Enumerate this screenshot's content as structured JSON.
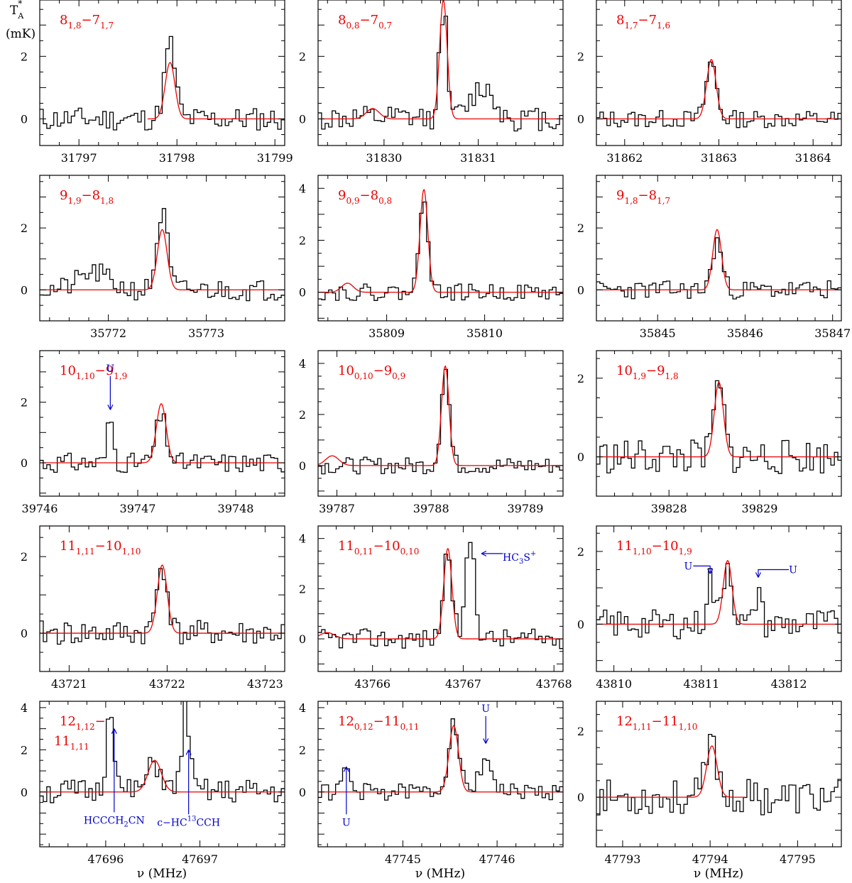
{
  "figure": {
    "ylabel_line1": "T",
    "ylabel_sub": "A",
    "ylabel_sup": "*",
    "ylabel_line2": "(mK)",
    "xlabel": "ν (MHz)"
  },
  "colors": {
    "observed": "#000000",
    "model": "#ee0000",
    "annotation": "#0000cc",
    "label": "#ee0000"
  },
  "chart_data": [
    {
      "type": "line",
      "id": "p00",
      "label": {
        "base": "8",
        "sub1": "1,8",
        "mid": "−7",
        "sub2": "1,7"
      },
      "xlim": [
        31796.6,
        31799.1
      ],
      "ylim": [
        -0.85,
        3.8
      ],
      "xticks": [
        31797,
        31798,
        31799
      ],
      "yticks": [
        0,
        2
      ],
      "line_center": 31797.93,
      "line_peak": 1.8,
      "line_width": 0.05,
      "fit_range": [
        31797.7,
        31799.1
      ],
      "obs_peak": 2.4,
      "seed": 11,
      "noise": 0.38,
      "extra_model": [],
      "extra_obs": [],
      "annotations": []
    },
    {
      "type": "line",
      "id": "p01",
      "label": {
        "base": "8",
        "sub1": "0,8",
        "mid": "−7",
        "sub2": "0,7"
      },
      "xlim": [
        31829.3,
        31831.9
      ],
      "ylim": [
        -0.85,
        3.8
      ],
      "xticks": [
        31830,
        31831
      ],
      "yticks": [
        0,
        2
      ],
      "line_center": 31830.63,
      "line_peak": 3.8,
      "line_width": 0.04,
      "fit_range": [
        31829.3,
        31831.9
      ],
      "obs_peak": 3.45,
      "seed": 12,
      "noise": 0.4,
      "extra_model": [
        {
          "c": 31829.88,
          "p": 0.33,
          "w": 0.07
        }
      ],
      "extra_obs": [
        {
          "c": 31831.05,
          "p": 1.0,
          "w": 0.12
        }
      ],
      "annotations": []
    },
    {
      "type": "line",
      "id": "p02",
      "label": {
        "base": "8",
        "sub1": "1,7",
        "mid": "−7",
        "sub2": "1,6"
      },
      "xlim": [
        31861.7,
        31864.3
      ],
      "ylim": [
        -0.85,
        3.8
      ],
      "xticks": [
        31862,
        31863,
        31864
      ],
      "yticks": [
        0,
        2
      ],
      "line_center": 31862.92,
      "line_peak": 1.9,
      "line_width": 0.05,
      "fit_range": [
        31861.7,
        31864.3
      ],
      "obs_peak": 1.8,
      "seed": 13,
      "noise": 0.28,
      "extra_model": [],
      "extra_obs": [],
      "annotations": []
    },
    {
      "type": "line",
      "id": "p10",
      "label": {
        "base": "9",
        "sub1": "1,9",
        "mid": "−8",
        "sub2": "1,8"
      },
      "xlim": [
        35771.3,
        35773.8
      ],
      "ylim": [
        -1.0,
        3.7
      ],
      "xticks": [
        35772,
        35773
      ],
      "yticks": [
        0,
        2
      ],
      "line_center": 35772.55,
      "line_peak": 1.95,
      "line_width": 0.05,
      "fit_range": [
        35771.3,
        35773.8
      ],
      "obs_peak": 2.5,
      "seed": 21,
      "noise": 0.35,
      "extra_model": [],
      "extra_obs": [
        {
          "c": 35771.85,
          "p": 0.55,
          "w": 0.15
        }
      ],
      "annotations": []
    },
    {
      "type": "line",
      "id": "p11",
      "label": {
        "base": "9",
        "sub1": "0,9",
        "mid": "−8",
        "sub2": "0,8"
      },
      "xlim": [
        35808.3,
        35810.8
      ],
      "ylim": [
        -1.1,
        4.5
      ],
      "xticks": [
        35809,
        35810
      ],
      "yticks": [
        0,
        2,
        4
      ],
      "line_center": 35809.38,
      "line_peak": 3.95,
      "line_width": 0.04,
      "fit_range": [
        35808.3,
        35810.8
      ],
      "obs_peak": 3.8,
      "seed": 22,
      "noise": 0.32,
      "extra_model": [
        {
          "c": 35808.6,
          "p": 0.35,
          "w": 0.06
        }
      ],
      "extra_obs": [],
      "annotations": []
    },
    {
      "type": "line",
      "id": "p12",
      "label": {
        "base": "9",
        "sub1": "1,8",
        "mid": "−8",
        "sub2": "1,7"
      },
      "xlim": [
        35844.3,
        35847.1
      ],
      "ylim": [
        -1.0,
        3.7
      ],
      "xticks": [
        35845,
        35846,
        35847
      ],
      "yticks": [
        0,
        2
      ],
      "line_center": 35845.68,
      "line_peak": 1.95,
      "line_width": 0.05,
      "fit_range": [
        35844.3,
        35847.1
      ],
      "obs_peak": 1.6,
      "seed": 23,
      "noise": 0.3,
      "extra_model": [],
      "extra_obs": [],
      "annotations": []
    },
    {
      "type": "line",
      "id": "p20",
      "label": {
        "base": "10",
        "sub1": "1,10",
        "mid": "−9",
        "sub2": "1,9"
      },
      "xlim": [
        39746.0,
        39748.5
      ],
      "ylim": [
        -1.1,
        3.7
      ],
      "xticks": [
        39746,
        39747,
        39748
      ],
      "yticks": [
        0,
        2
      ],
      "line_center": 39747.24,
      "line_peak": 1.95,
      "line_width": 0.05,
      "fit_range": [
        39746.0,
        39748.5
      ],
      "obs_peak": 1.5,
      "seed": 31,
      "noise": 0.33,
      "extra_model": [],
      "extra_obs": [
        {
          "c": 39746.72,
          "p": 1.5,
          "w": 0.03
        }
      ],
      "annotations": [
        {
          "text": "U",
          "x": 39746.72,
          "y_text": 3.0,
          "y_head": 1.75,
          "dir": "down"
        }
      ]
    },
    {
      "type": "line",
      "id": "p21",
      "label": {
        "base": "10",
        "sub1": "0,10",
        "mid": "−9",
        "sub2": "0,9"
      },
      "xlim": [
        39786.8,
        39789.4
      ],
      "ylim": [
        -1.2,
        4.5
      ],
      "xticks": [
        39787,
        39788,
        39789
      ],
      "yticks": [
        0,
        2,
        4
      ],
      "line_center": 39788.15,
      "line_peak": 3.9,
      "line_width": 0.04,
      "fit_range": [
        39786.8,
        39789.4
      ],
      "obs_peak": 3.8,
      "seed": 32,
      "noise": 0.33,
      "extra_model": [
        {
          "c": 39786.95,
          "p": 0.38,
          "w": 0.07
        }
      ],
      "extra_obs": [],
      "annotations": []
    },
    {
      "type": "line",
      "id": "p22",
      "label": {
        "base": "10",
        "sub1": "1,9",
        "mid": "−9",
        "sub2": "1,8"
      },
      "xlim": [
        39827.2,
        39829.9
      ],
      "ylim": [
        -1.0,
        2.7
      ],
      "xticks": [
        39828,
        39829
      ],
      "yticks": [
        0,
        2
      ],
      "line_center": 39828.55,
      "line_peak": 1.9,
      "line_width": 0.05,
      "fit_range": [
        39827.2,
        39829.9
      ],
      "obs_peak": 1.8,
      "seed": 33,
      "noise": 0.45,
      "extra_model": [],
      "extra_obs": [],
      "annotations": []
    },
    {
      "type": "line",
      "id": "p30",
      "label": {
        "base": "11",
        "sub1": "1,11",
        "mid": "−10",
        "sub2": "1,10"
      },
      "xlim": [
        43720.7,
        43723.2
      ],
      "ylim": [
        -1.0,
        2.8
      ],
      "xticks": [
        43721,
        43722,
        43723
      ],
      "yticks": [
        0,
        2
      ],
      "line_center": 43721.95,
      "line_peak": 1.78,
      "line_width": 0.05,
      "fit_range": [
        43720.7,
        43723.2
      ],
      "obs_peak": 1.8,
      "seed": 41,
      "noise": 0.33,
      "extra_model": [],
      "extra_obs": [],
      "annotations": []
    },
    {
      "type": "line",
      "id": "p31",
      "label": {
        "base": "11",
        "sub1": "0,11",
        "mid": "−10",
        "sub2": "0,10"
      },
      "xlim": [
        43765.4,
        43768.1
      ],
      "ylim": [
        -1.3,
        4.5
      ],
      "xticks": [
        43766,
        43767,
        43768
      ],
      "yticks": [
        0,
        2,
        4
      ],
      "line_center": 43766.83,
      "line_peak": 3.6,
      "line_width": 0.045,
      "fit_range": [
        43765.4,
        43768.1
      ],
      "obs_peak": 3.5,
      "seed": 42,
      "noise": 0.4,
      "extra_model": [
        {
          "c": 43765.5,
          "p": 0.25,
          "w": 0.08
        }
      ],
      "extra_obs": [
        {
          "c": 43767.08,
          "p": 4.0,
          "w": 0.05
        }
      ],
      "annotations": [
        {
          "text": "HC3S+",
          "x": 43767.2,
          "y": 3.4,
          "dir": "left",
          "x_text": 43767.62
        }
      ]
    },
    {
      "type": "line",
      "id": "p32",
      "label": {
        "base": "11",
        "sub1": "1,10",
        "mid": "−10",
        "sub2": "1,9"
      },
      "xlim": [
        43809.8,
        43812.6
      ],
      "ylim": [
        -1.3,
        2.7
      ],
      "xticks": [
        43810,
        43811,
        43812
      ],
      "yticks": [
        0,
        2
      ],
      "line_center": 43811.3,
      "line_peak": 1.75,
      "line_width": 0.05,
      "fit_range": [
        43809.8,
        43812.6
      ],
      "obs_peak": 1.7,
      "seed": 43,
      "noise": 0.4,
      "extra_model": [],
      "extra_obs": [
        {
          "c": 43811.1,
          "p": 1.3,
          "w": 0.04
        },
        {
          "c": 43811.65,
          "p": 1.1,
          "w": 0.03
        }
      ],
      "annotations": [
        {
          "text": "U",
          "x": 43811.1,
          "y": 1.6,
          "dir": "left-down",
          "x_text": 43810.85
        },
        {
          "text": "U",
          "x": 43811.65,
          "y": 1.5,
          "dir": "right-down",
          "x_text": 43812.0
        }
      ]
    },
    {
      "type": "line",
      "id": "p40",
      "label": {
        "base": "12",
        "sub1": "1,12",
        "mid": "−",
        "sub2": "",
        "line2base": "11",
        "line2sub": "1,11"
      },
      "xlim": [
        47695.3,
        47697.9
      ],
      "ylim": [
        -2.6,
        4.3
      ],
      "xticks": [
        47696,
        47697
      ],
      "yticks": [
        0,
        2,
        4
      ],
      "line_center": 47696.52,
      "line_peak": 1.5,
      "line_width": 0.07,
      "fit_range": [
        47695.3,
        47697.9
      ],
      "obs_peak": 1.3,
      "seed": 51,
      "noise": 0.6,
      "extra_model": [],
      "extra_obs": [
        {
          "c": 47696.05,
          "p": 4.2,
          "w": 0.04
        },
        {
          "c": 47696.85,
          "p": 4.0,
          "w": 0.04
        }
      ],
      "annotations": [
        {
          "text": "HCCCH2CN",
          "x": 47696.09,
          "y_head": 3.0,
          "y_text": -1.5,
          "dir": "up"
        },
        {
          "text": "c−HC13CCH",
          "x": 47696.88,
          "y_head": 2.0,
          "y_text": -1.6,
          "dir": "up"
        }
      ]
    },
    {
      "type": "line",
      "id": "p41",
      "label": {
        "base": "12",
        "sub1": "0,12",
        "mid": "−11",
        "sub2": "0,11"
      },
      "xlim": [
        47744.1,
        47746.7
      ],
      "ylim": [
        -2.6,
        4.3
      ],
      "xticks": [
        47745,
        47746
      ],
      "yticks": [
        0,
        2,
        4
      ],
      "line_center": 47745.54,
      "line_peak": 3.15,
      "line_width": 0.05,
      "fit_range": [
        47744.1,
        47746.7
      ],
      "obs_peak": 3.5,
      "seed": 52,
      "noise": 0.4,
      "extra_model": [],
      "extra_obs": [
        {
          "c": 47745.88,
          "p": 1.6,
          "w": 0.07
        },
        {
          "c": 47744.4,
          "p": 1.1,
          "w": 0.04
        }
      ],
      "annotations": [
        {
          "text": "U",
          "x": 47745.88,
          "y_text": 3.8,
          "y_head": 2.3,
          "dir": "down"
        },
        {
          "text": "U",
          "x": 47744.4,
          "y_head": 1.2,
          "y_text": -1.6,
          "dir": "up"
        }
      ]
    },
    {
      "type": "line",
      "id": "p42",
      "label": {
        "base": "12",
        "sub1": "1,11",
        "mid": "−11",
        "sub2": "1,10"
      },
      "xlim": [
        47792.7,
        47795.5
      ],
      "ylim": [
        -1.5,
        2.9
      ],
      "xticks": [
        47793,
        47794,
        47795
      ],
      "yticks": [
        0,
        2
      ],
      "line_center": 47794.02,
      "line_peak": 1.55,
      "line_width": 0.06,
      "fit_range": [
        47792.7,
        47794.4
      ],
      "obs_peak": 1.6,
      "seed": 53,
      "noise": 0.55,
      "extra_model": [],
      "extra_obs": [],
      "annotations": []
    }
  ]
}
